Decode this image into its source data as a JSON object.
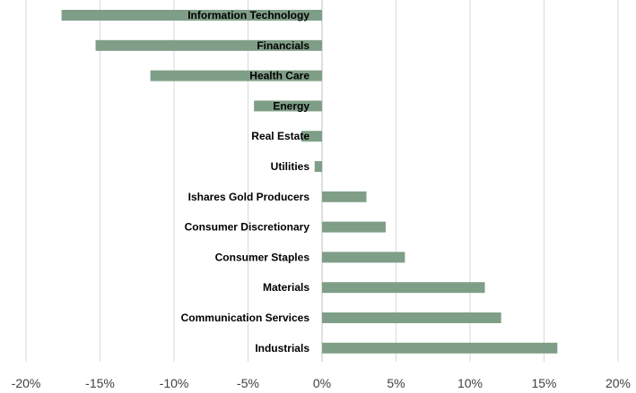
{
  "chart_data": {
    "type": "bar",
    "orientation": "horizontal",
    "categories": [
      "Information Technology",
      "Financials",
      "Health Care",
      "Energy",
      "Real Estate",
      "Utilities",
      "Ishares Gold Producers",
      "Consumer Discretionary",
      "Consumer Staples",
      "Materials",
      "Communication Services",
      "Industrials"
    ],
    "values": [
      -17.6,
      -15.3,
      -11.6,
      -4.6,
      -1.4,
      -0.5,
      3.0,
      4.3,
      5.6,
      11.0,
      12.1,
      15.9
    ],
    "title": "",
    "xlabel": "",
    "ylabel": "",
    "xlim": [
      -20,
      20
    ],
    "xticks": [
      -20,
      -15,
      -10,
      -5,
      0,
      5,
      10,
      15,
      20
    ],
    "xtick_labels": [
      "-20%",
      "-15%",
      "-10%",
      "-5%",
      "0%",
      "5%",
      "10%",
      "15%",
      "20%"
    ],
    "grid": true,
    "legend": "none",
    "colors": {
      "bar": "#7f9e87",
      "grid": "#d9d9d9",
      "axis": "#bfbfbf"
    }
  }
}
